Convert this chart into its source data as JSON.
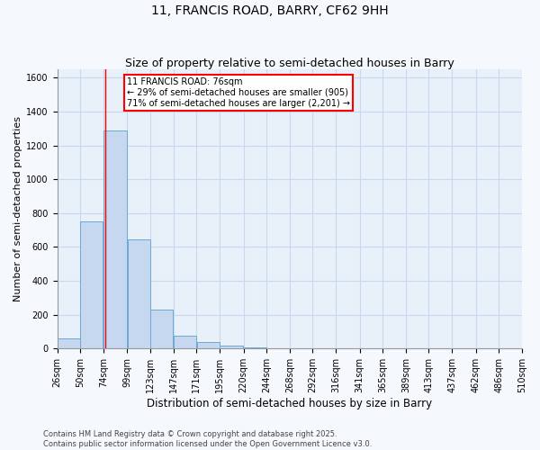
{
  "title": "11, FRANCIS ROAD, BARRY, CF62 9HH",
  "subtitle": "Size of property relative to semi-detached houses in Barry",
  "xlabel": "Distribution of semi-detached houses by size in Barry",
  "ylabel": "Number of semi-detached properties",
  "bin_labels": [
    "26sqm",
    "50sqm",
    "74sqm",
    "99sqm",
    "123sqm",
    "147sqm",
    "171sqm",
    "195sqm",
    "220sqm",
    "244sqm",
    "268sqm",
    "292sqm",
    "316sqm",
    "341sqm",
    "365sqm",
    "389sqm",
    "413sqm",
    "437sqm",
    "462sqm",
    "486sqm",
    "510sqm"
  ],
  "bin_edges": [
    26,
    50,
    74,
    99,
    123,
    147,
    171,
    195,
    220,
    244,
    268,
    292,
    316,
    341,
    365,
    389,
    413,
    437,
    462,
    486,
    510
  ],
  "bar_heights": [
    60,
    750,
    1290,
    645,
    230,
    75,
    40,
    20,
    8,
    0,
    0,
    0,
    0,
    0,
    0,
    0,
    0,
    0,
    0,
    0
  ],
  "bar_color": "#c5d8f0",
  "bar_edge_color": "#6aaad4",
  "grid_color": "#c8d8ee",
  "plot_bg_color": "#e8f0fa",
  "fig_bg_color": "#f5f8fd",
  "vline_x": 76,
  "vline_color": "red",
  "annotation_title": "11 FRANCIS ROAD: 76sqm",
  "annotation_line1": "← 29% of semi-detached houses are smaller (905)",
  "annotation_line2": "71% of semi-detached houses are larger (2,201) →",
  "annotation_box_color": "white",
  "annotation_box_edge": "red",
  "footer_line1": "Contains HM Land Registry data © Crown copyright and database right 2025.",
  "footer_line2": "Contains public sector information licensed under the Open Government Licence v3.0.",
  "ylim": [
    0,
    1650
  ],
  "title_fontsize": 10,
  "subtitle_fontsize": 9,
  "ylabel_fontsize": 8,
  "xlabel_fontsize": 8.5,
  "tick_fontsize": 7,
  "annotation_fontsize": 7,
  "footer_fontsize": 6
}
